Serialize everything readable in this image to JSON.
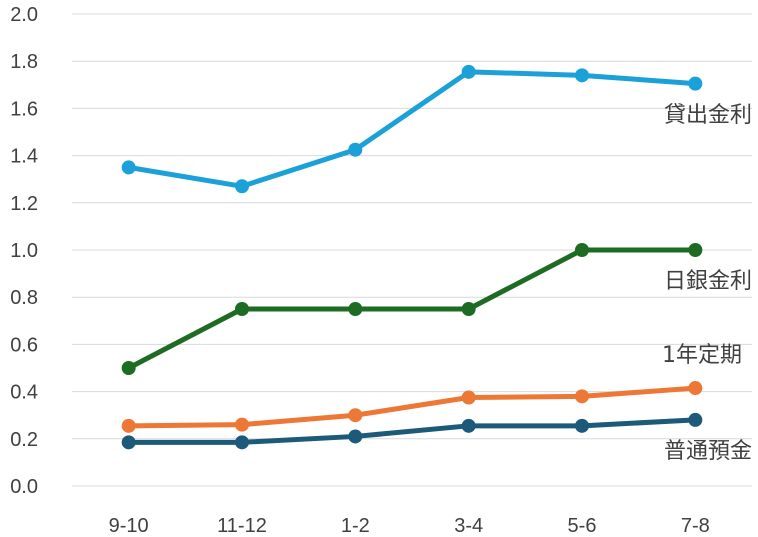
{
  "chart_data": {
    "type": "line",
    "categories": [
      "9-10",
      "11-12",
      "1-2",
      "3-4",
      "5-6",
      "7-8"
    ],
    "ylim": [
      0,
      2.0
    ],
    "yticks": [
      "0.0",
      "0.2",
      "0.4",
      "0.6",
      "0.8",
      "1.0",
      "1.2",
      "1.4",
      "1.6",
      "1.8",
      "2.0"
    ],
    "grid": true,
    "series": [
      {
        "name": "貸出金利",
        "color": "#1ba1d8",
        "values": [
          1.35,
          1.27,
          1.425,
          1.755,
          1.74,
          1.705
        ]
      },
      {
        "name": "日銀金利",
        "color": "#1e6b23",
        "values": [
          0.5,
          0.75,
          0.75,
          0.75,
          1.0,
          1.0
        ]
      },
      {
        "name": "1年定期",
        "color": "#ed7734",
        "values": [
          0.255,
          0.26,
          0.3,
          0.375,
          0.38,
          0.415
        ]
      },
      {
        "name": "普通預金",
        "color": "#1d5a7a",
        "values": [
          0.185,
          0.185,
          0.21,
          0.255,
          0.255,
          0.28
        ]
      }
    ]
  }
}
